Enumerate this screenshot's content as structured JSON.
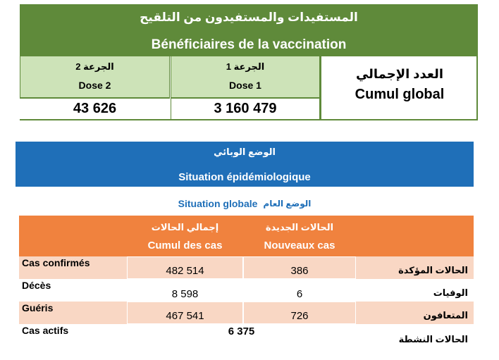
{
  "vaccination": {
    "title_ar": "المستفيدات والمستفيدون من التلقيح",
    "title_fr": "Bénéficiaires de la vaccination",
    "dose2": {
      "label_ar": "الجرعة 2",
      "label_fr": "Dose 2",
      "value": "43 626"
    },
    "dose1": {
      "label_ar": "الجرعة 1",
      "label_fr": "Dose 1",
      "value": "3 160 479"
    },
    "cumul": {
      "label_ar": "العدد الإجمالي",
      "label_fr": "Cumul global"
    },
    "colors": {
      "header": "#5f8a3a",
      "dose_bg": "#cde3b8"
    }
  },
  "epidemiology": {
    "title_ar": "الوضع الوبائي",
    "title_fr": "Situation épidémiologique",
    "color": "#1f6fb8"
  },
  "global_situation": {
    "label_fr": "Situation globale",
    "label_ar": "الوضع العام"
  },
  "table": {
    "header_color": "#f0823e",
    "columns": {
      "cumul": {
        "ar": "إجمالي الحالات",
        "fr": "Cumul des cas"
      },
      "nouveaux": {
        "ar": "الحالات الجديدة",
        "fr": "Nouveaux cas"
      }
    },
    "rows": [
      {
        "fr": "Cas confirmés",
        "cumul": "482 514",
        "nouveaux": "386",
        "ar": "الحالات المؤكدة"
      },
      {
        "fr": "Décès",
        "cumul": "8 598",
        "nouveaux": "6",
        "ar": "الوفيات"
      },
      {
        "fr": "Guéris",
        "cumul": "467 541",
        "nouveaux": "726",
        "ar": "المتعافون"
      }
    ],
    "actifs": {
      "fr": "Cas actifs",
      "value": "6 375",
      "ar": "الحالات النشطة"
    }
  }
}
